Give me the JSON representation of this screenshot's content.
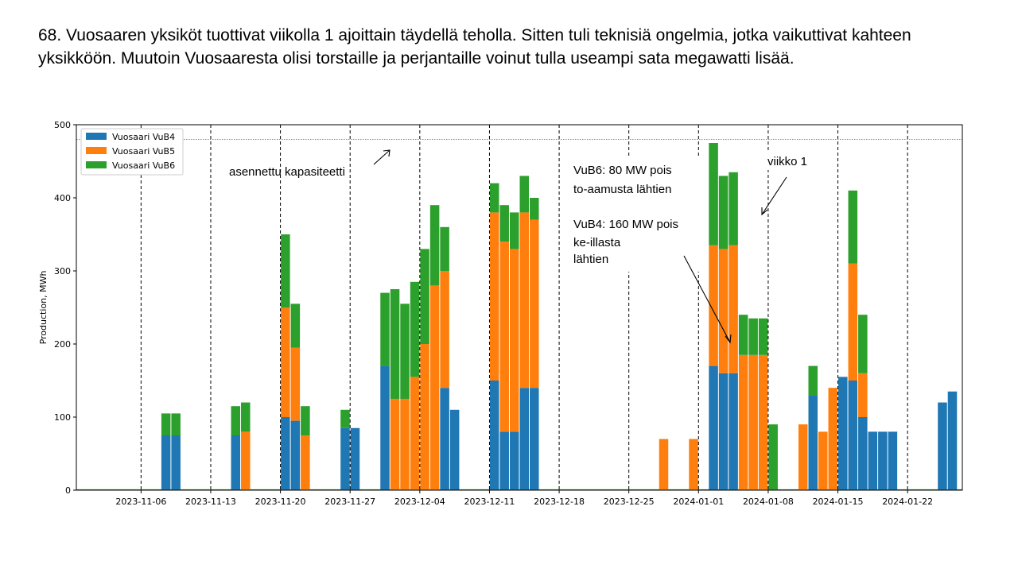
{
  "slide": {
    "title": "68. Vuosaaren yksiköt tuottivat viikolla 1 ajoittain täydellä teholla. Sitten tuli teknisiä ongelmia, jotka vaikuttivat kahteen yksikköön. Muutoin Vuosaaresta olisi torstaille ja perjantaille voinut tulla useampi sata megawatti lisää."
  },
  "chart_data": {
    "type": "area",
    "stacked": true,
    "ylabel": "Production, MWh",
    "xlabel": "",
    "ylim": [
      0,
      500
    ],
    "xlim": [
      "2023-10-30T12:00",
      "2024-01-27T12:00"
    ],
    "yticks": [
      0,
      100,
      200,
      300,
      400,
      500
    ],
    "xticks": [
      "2023-11-06",
      "2023-11-13",
      "2023-11-20",
      "2023-11-27",
      "2023-12-04",
      "2023-12-11",
      "2023-12-18",
      "2023-12-25",
      "2024-01-01",
      "2024-01-08",
      "2024-01-15",
      "2024-01-22"
    ],
    "vlines": [
      "2023-11-06",
      "2023-11-13",
      "2023-11-20",
      "2023-11-27",
      "2023-12-04",
      "2023-12-11",
      "2023-12-18",
      "2023-12-25",
      "2024-01-01",
      "2024-01-08",
      "2024-01-15",
      "2024-01-22"
    ],
    "hline": 480,
    "legend_position": "top-left",
    "colors": {
      "VuB4": "#1f77b4",
      "VuB5": "#ff7f0e",
      "VuB6": "#2ca02c"
    },
    "series": [
      {
        "name": "Vuosaari VuB4",
        "key": "VuB4"
      },
      {
        "name": "Vuosaari VuB5",
        "key": "VuB5"
      },
      {
        "name": "Vuosaari VuB6",
        "key": "VuB6"
      }
    ],
    "x": [
      "2023-11-08",
      "2023-11-09",
      "2023-11-15",
      "2023-11-16",
      "2023-11-20",
      "2023-11-21",
      "2023-11-22",
      "2023-11-26",
      "2023-11-27",
      "2023-11-28",
      "2023-11-30",
      "2023-12-01",
      "2023-12-02",
      "2023-12-03",
      "2023-12-04",
      "2023-12-05",
      "2023-12-06",
      "2023-12-07",
      "2023-12-11",
      "2023-12-12",
      "2023-12-13",
      "2023-12-14",
      "2023-12-15",
      "2023-12-16",
      "2023-12-28",
      "2023-12-31",
      "2024-01-02",
      "2024-01-03",
      "2024-01-04",
      "2024-01-05",
      "2024-01-06",
      "2024-01-07",
      "2024-01-08",
      "2024-01-11",
      "2024-01-12",
      "2024-01-13",
      "2024-01-14",
      "2024-01-15",
      "2024-01-16",
      "2024-01-17",
      "2024-01-18",
      "2024-01-19",
      "2024-01-20",
      "2024-01-21",
      "2024-01-25",
      "2024-01-26"
    ],
    "VuB4": [
      75,
      75,
      75,
      0,
      100,
      95,
      0,
      85,
      85,
      0,
      170,
      0,
      0,
      0,
      0,
      0,
      140,
      110,
      150,
      80,
      80,
      140,
      140,
      0,
      0,
      0,
      170,
      160,
      160,
      0,
      0,
      0,
      0,
      0,
      130,
      0,
      0,
      155,
      150,
      100,
      80,
      80,
      80,
      0,
      120,
      135
    ],
    "VuB5": [
      0,
      0,
      0,
      80,
      150,
      100,
      75,
      0,
      0,
      0,
      0,
      125,
      125,
      155,
      200,
      280,
      160,
      0,
      230,
      260,
      250,
      240,
      230,
      0,
      70,
      70,
      165,
      170,
      175,
      185,
      185,
      185,
      0,
      90,
      0,
      80,
      140,
      0,
      160,
      60,
      0,
      0,
      0,
      0,
      0,
      0
    ],
    "VuB6": [
      30,
      30,
      40,
      40,
      100,
      60,
      40,
      25,
      0,
      0,
      100,
      150,
      130,
      130,
      130,
      110,
      60,
      0,
      40,
      50,
      50,
      50,
      30,
      0,
      0,
      0,
      140,
      100,
      100,
      55,
      50,
      50,
      90,
      0,
      40,
      0,
      0,
      0,
      100,
      80,
      0,
      0,
      0,
      0,
      0,
      0
    ]
  },
  "annotations": {
    "capacity_label": "asennettu kapasiteetti",
    "note_vub6_line1": "VuB6: 80 MW pois",
    "note_vub6_line2": "to-aamusta lähtien",
    "note_vub4_line1": "VuB4: 160 MW pois",
    "note_vub4_line2": "ke-illasta",
    "note_vub4_line3": "lähtien",
    "week_label": "viikko 1"
  }
}
